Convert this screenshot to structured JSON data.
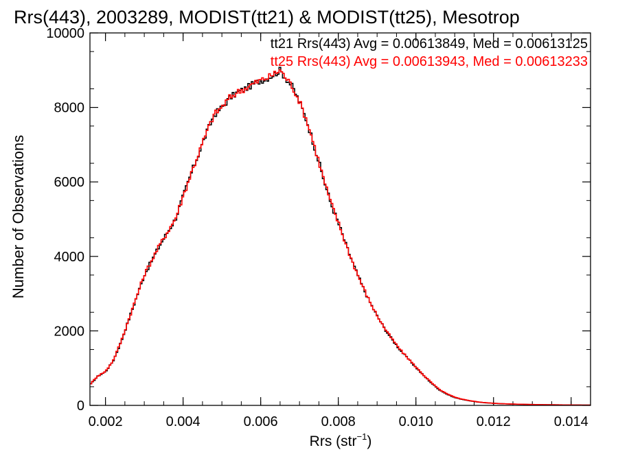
{
  "chart_data": {
    "type": "histogram",
    "title": "Rrs(443), 2003289, MODIST(tt21) & MODIST(tt25), Mesotrop",
    "xlabel_base": "Rrs (str",
    "xlabel_sup": "−1",
    "xlabel_close": ")",
    "ylabel": "Number of Observations",
    "xlim": [
      0.0016,
      0.0145
    ],
    "ylim": [
      0,
      10000
    ],
    "xticks": [
      0.002,
      0.004,
      0.006,
      0.008,
      0.01,
      0.012,
      0.014
    ],
    "xtick_labels": [
      "0.002",
      "0.004",
      "0.006",
      "0.008",
      "0.010",
      "0.012",
      "0.014"
    ],
    "yticks": [
      0,
      2000,
      4000,
      6000,
      8000,
      10000
    ],
    "ytick_labels": [
      "0",
      "2000",
      "4000",
      "6000",
      "8000",
      "10000"
    ],
    "bin_width": 4.47e-05,
    "grid": false,
    "legend_position": "top-right",
    "series": [
      {
        "name": "tt21",
        "color": "#000000",
        "annotation": "tt21 Rrs(443) Avg = 0.00613849, Med = 0.00613125",
        "avg": 0.00613849,
        "median": 0.00613125,
        "x": [
          0.0016,
          0.0018,
          0.002,
          0.0022,
          0.0024,
          0.0026,
          0.0028,
          0.003,
          0.0032,
          0.0034,
          0.0036,
          0.0038,
          0.004,
          0.0042,
          0.0044,
          0.0046,
          0.0048,
          0.005,
          0.0052,
          0.0054,
          0.0056,
          0.0058,
          0.006,
          0.0062,
          0.0064,
          0.0065,
          0.0066,
          0.0068,
          0.007,
          0.0072,
          0.0074,
          0.0076,
          0.0078,
          0.008,
          0.0082,
          0.0084,
          0.0086,
          0.0088,
          0.009,
          0.0092,
          0.0094,
          0.0096,
          0.0098,
          0.01,
          0.0102,
          0.0104,
          0.0106,
          0.0108,
          0.011,
          0.0112,
          0.0114,
          0.0116,
          0.0118,
          0.012,
          0.0122,
          0.0124,
          0.0126,
          0.0128,
          0.013,
          0.0132,
          0.0134,
          0.0136,
          0.0138,
          0.014,
          0.0142,
          0.0145
        ],
        "y": [
          550,
          780,
          900,
          1200,
          1700,
          2300,
          2900,
          3500,
          3900,
          4300,
          4650,
          5000,
          5600,
          6200,
          6750,
          7300,
          7800,
          8000,
          8250,
          8400,
          8500,
          8620,
          8720,
          8800,
          8920,
          9000,
          8850,
          8580,
          8150,
          7600,
          6900,
          6150,
          5450,
          4900,
          4300,
          3750,
          3250,
          2800,
          2400,
          2050,
          1750,
          1480,
          1250,
          1020,
          800,
          600,
          420,
          300,
          210,
          160,
          120,
          90,
          70,
          55,
          45,
          38,
          32,
          27,
          23,
          20,
          17,
          15,
          13,
          12,
          10,
          8
        ]
      },
      {
        "name": "tt25",
        "color": "#ff0000",
        "annotation": "tt25 Rrs(443) Avg = 0.00613943, Med = 0.00613233",
        "avg": 0.00613943,
        "median": 0.00613233,
        "x": [
          0.0016,
          0.0018,
          0.002,
          0.0022,
          0.0024,
          0.0026,
          0.0028,
          0.003,
          0.0032,
          0.0034,
          0.0036,
          0.0038,
          0.004,
          0.0042,
          0.0044,
          0.0046,
          0.0048,
          0.005,
          0.0052,
          0.0054,
          0.0056,
          0.0058,
          0.006,
          0.0062,
          0.0064,
          0.0065,
          0.0066,
          0.0068,
          0.007,
          0.0072,
          0.0074,
          0.0076,
          0.0078,
          0.008,
          0.0082,
          0.0084,
          0.0086,
          0.0088,
          0.009,
          0.0092,
          0.0094,
          0.0096,
          0.0098,
          0.01,
          0.0102,
          0.0104,
          0.0106,
          0.0108,
          0.011,
          0.0112,
          0.0114,
          0.0116,
          0.0118,
          0.012,
          0.0122,
          0.0124,
          0.0126,
          0.0128,
          0.013,
          0.0132,
          0.0134,
          0.0136,
          0.0138,
          0.014,
          0.0142,
          0.0145
        ],
        "y": [
          560,
          790,
          910,
          1210,
          1710,
          2310,
          2910,
          3510,
          3910,
          4310,
          4660,
          5010,
          5610,
          6210,
          6760,
          7310,
          7810,
          8010,
          8260,
          8410,
          8510,
          8630,
          8730,
          8810,
          8930,
          9010,
          8860,
          8590,
          8160,
          7610,
          6910,
          6160,
          5460,
          4910,
          4310,
          3760,
          3260,
          2810,
          2410,
          2060,
          1760,
          1490,
          1260,
          1030,
          810,
          610,
          430,
          310,
          220,
          165,
          125,
          92,
          72,
          57,
          46,
          39,
          33,
          28,
          24,
          21,
          18,
          16,
          14,
          12,
          10,
          8
        ]
      }
    ]
  }
}
